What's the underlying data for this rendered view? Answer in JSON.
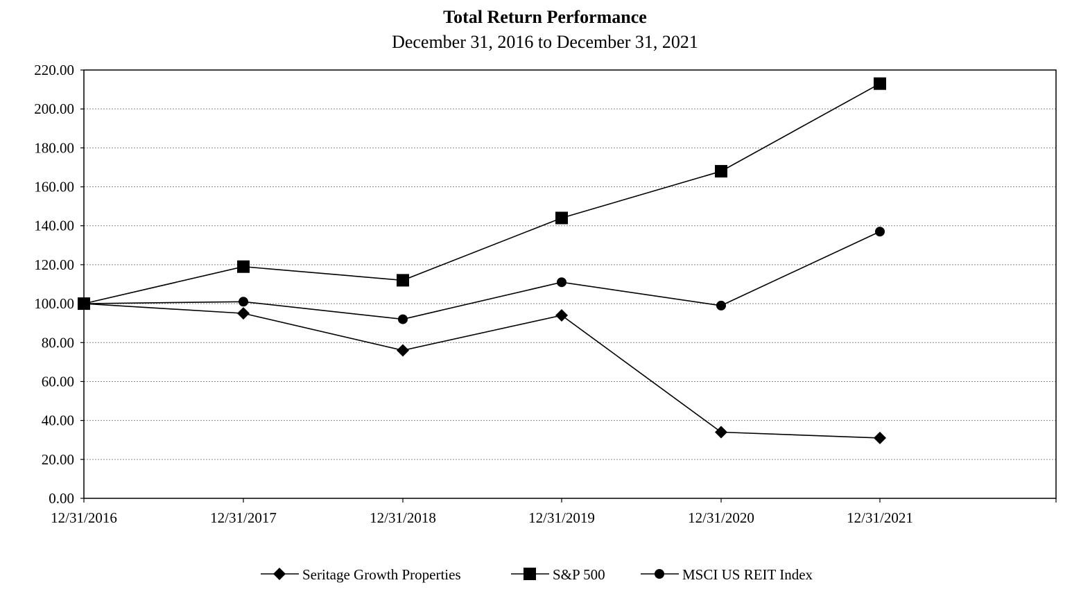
{
  "chart_data": {
    "type": "line",
    "title": "Total Return Performance",
    "subtitle": "December 31, 2016 to December 31, 2021",
    "categories": [
      "12/31/2016",
      "12/31/2017",
      "12/31/2018",
      "12/31/2019",
      "12/31/2020",
      "12/31/2021"
    ],
    "ylim": [
      0,
      220
    ],
    "yticks": [
      "0.00",
      "20.00",
      "40.00",
      "60.00",
      "80.00",
      "100.00",
      "120.00",
      "140.00",
      "160.00",
      "180.00",
      "200.00",
      "220.00"
    ],
    "grid": true,
    "legend_position": "bottom",
    "series": [
      {
        "name": "Seritage Growth Properties",
        "marker": "diamond",
        "values": [
          100,
          95,
          76,
          94,
          34,
          31
        ]
      },
      {
        "name": "S&P 500",
        "marker": "square",
        "values": [
          100,
          119,
          112,
          144,
          168,
          213
        ]
      },
      {
        "name": "MSCI US REIT Index",
        "marker": "circle",
        "values": [
          100,
          101,
          92,
          111,
          99,
          137
        ]
      }
    ]
  }
}
